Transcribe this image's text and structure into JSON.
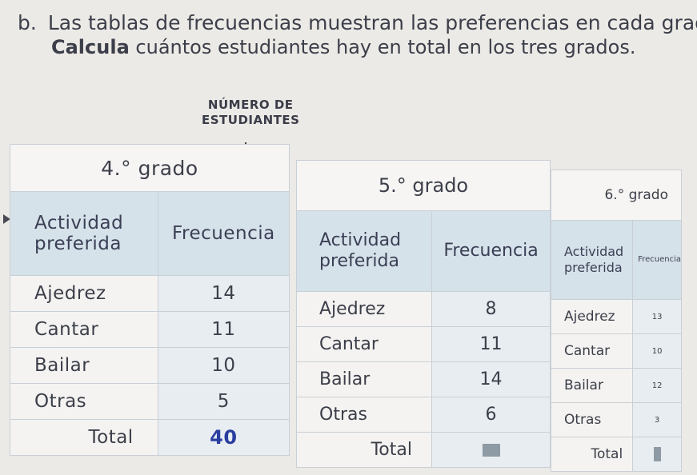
{
  "prompt": {
    "letter": "b.",
    "line1": "Las tablas de frecuencias muestran las preferencias en cada grado.",
    "line2_bold": "Calcula",
    "line2_rest": "cuántos estudiantes hay en total en los tres grados."
  },
  "callout": {
    "line1": "NÚMERO DE",
    "line2": "ESTUDIANTES"
  },
  "tables": [
    {
      "title": "4.° grado",
      "col_activity": "Actividad preferida",
      "col_frequency": "Frecuencia",
      "rows": [
        {
          "activity": "Ajedrez",
          "frequency": "14"
        },
        {
          "activity": "Cantar",
          "frequency": "11"
        },
        {
          "activity": "Bailar",
          "frequency": "10"
        },
        {
          "activity": "Otras",
          "frequency": "5"
        }
      ],
      "total_label": "Total",
      "total_value": "40"
    },
    {
      "title": "5.° grado",
      "col_activity": "Actividad preferida",
      "col_frequency": "Frecuencia",
      "rows": [
        {
          "activity": "Ajedrez",
          "frequency": "8"
        },
        {
          "activity": "Cantar",
          "frequency": "11"
        },
        {
          "activity": "Bailar",
          "frequency": "14"
        },
        {
          "activity": "Otras",
          "frequency": "6"
        }
      ],
      "total_label": "Total",
      "total_value": ""
    },
    {
      "title": "6.° grado",
      "col_activity": "Actividad preferida",
      "col_frequency": "Frecuencia",
      "rows": [
        {
          "activity": "Ajedrez",
          "frequency": "13"
        },
        {
          "activity": "Cantar",
          "frequency": "10"
        },
        {
          "activity": "Bailar",
          "frequency": "12"
        },
        {
          "activity": "Otras",
          "frequency": "3"
        }
      ],
      "total_label": "Total",
      "total_value": ""
    }
  ],
  "colors": {
    "header_bg": "#d6e2ea",
    "highlight_total": "#2a3ea0"
  }
}
